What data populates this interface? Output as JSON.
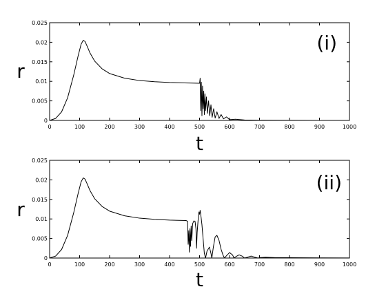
{
  "chart_data": [
    {
      "type": "line",
      "panel_label": "(i)",
      "xlabel": "t",
      "ylabel": "r",
      "xlim": [
        0,
        1000
      ],
      "ylim": [
        0,
        0.025
      ],
      "x_ticks": [
        "0",
        "100",
        "200",
        "300",
        "400",
        "500",
        "600",
        "700",
        "800",
        "900",
        "1000"
      ],
      "y_ticks": [
        "0",
        "0.005",
        "0.01",
        "0.015",
        "0.02",
        "0.025"
      ],
      "grid": false,
      "series": [
        {
          "color": "#000000",
          "points": [
            [
              0,
              0
            ],
            [
              20,
              0.0005
            ],
            [
              40,
              0.0022
            ],
            [
              60,
              0.0058
            ],
            [
              80,
              0.0115
            ],
            [
              95,
              0.0165
            ],
            [
              105,
              0.0195
            ],
            [
              112,
              0.0205
            ],
            [
              118,
              0.0202
            ],
            [
              125,
              0.019
            ],
            [
              135,
              0.0172
            ],
            [
              150,
              0.0152
            ],
            [
              175,
              0.0132
            ],
            [
              200,
              0.012
            ],
            [
              250,
              0.0108
            ],
            [
              300,
              0.0102
            ],
            [
              350,
              0.0099
            ],
            [
              400,
              0.0097
            ],
            [
              450,
              0.0096
            ],
            [
              500,
              0.0095
            ],
            [
              502,
              0.0108
            ],
            [
              504,
              0.0025
            ],
            [
              506,
              0.0098
            ],
            [
              508,
              0.0012
            ],
            [
              510,
              0.0088
            ],
            [
              512,
              0.003
            ],
            [
              514,
              0.0075
            ],
            [
              516,
              0.0015
            ],
            [
              518,
              0.0068
            ],
            [
              520,
              0.0025
            ],
            [
              523,
              0.006
            ],
            [
              526,
              0.0018
            ],
            [
              530,
              0.005
            ],
            [
              534,
              0.0012
            ],
            [
              538,
              0.004
            ],
            [
              542,
              0.0008
            ],
            [
              547,
              0.003
            ],
            [
              552,
              0.0006
            ],
            [
              558,
              0.0022
            ],
            [
              565,
              0.0005
            ],
            [
              572,
              0.0015
            ],
            [
              580,
              0.0004
            ],
            [
              590,
              0.0009
            ],
            [
              600,
              0.0002
            ],
            [
              620,
              0.0003
            ],
            [
              650,
              0.0001
            ],
            [
              700,
              5e-05
            ],
            [
              800,
              2e-05
            ],
            [
              900,
              1e-05
            ],
            [
              1000,
              0
            ]
          ]
        }
      ]
    },
    {
      "type": "line",
      "panel_label": "(ii)",
      "xlabel": "t",
      "ylabel": "r",
      "xlim": [
        0,
        1000
      ],
      "ylim": [
        0,
        0.025
      ],
      "x_ticks": [
        "0",
        "100",
        "200",
        "300",
        "400",
        "500",
        "600",
        "700",
        "800",
        "900",
        "1000"
      ],
      "y_ticks": [
        "0",
        "0.005",
        "0.01",
        "0.015",
        "0.02",
        "0.025"
      ],
      "grid": false,
      "series": [
        {
          "color": "#000000",
          "points": [
            [
              0,
              0
            ],
            [
              20,
              0.0005
            ],
            [
              40,
              0.0022
            ],
            [
              60,
              0.0058
            ],
            [
              80,
              0.0115
            ],
            [
              95,
              0.0165
            ],
            [
              105,
              0.0195
            ],
            [
              112,
              0.0205
            ],
            [
              118,
              0.0202
            ],
            [
              125,
              0.019
            ],
            [
              135,
              0.0172
            ],
            [
              150,
              0.0152
            ],
            [
              175,
              0.0132
            ],
            [
              200,
              0.012
            ],
            [
              250,
              0.0108
            ],
            [
              300,
              0.0102
            ],
            [
              350,
              0.0099
            ],
            [
              400,
              0.0097
            ],
            [
              455,
              0.0096
            ],
            [
              460,
              0.0094
            ],
            [
              462,
              0.0035
            ],
            [
              464,
              0.007
            ],
            [
              466,
              0.0015
            ],
            [
              468,
              0.0075
            ],
            [
              470,
              0.003
            ],
            [
              472,
              0.0082
            ],
            [
              474,
              0.0045
            ],
            [
              477,
              0.0088
            ],
            [
              481,
              0.0095
            ],
            [
              485,
              0.0094
            ],
            [
              488,
              0.0075
            ],
            [
              490,
              0.0025
            ],
            [
              492,
              0.0065
            ],
            [
              495,
              0.0095
            ],
            [
              498,
              0.0118
            ],
            [
              500,
              0.0112
            ],
            [
              502,
              0.0122
            ],
            [
              505,
              0.0105
            ],
            [
              508,
              0.0085
            ],
            [
              512,
              0.0048
            ],
            [
              516,
              0.0012
            ],
            [
              520,
              0.0
            ],
            [
              525,
              0.0018
            ],
            [
              533,
              0.0028
            ],
            [
              538,
              0.0012
            ],
            [
              541,
              0.0
            ],
            [
              546,
              0.0028
            ],
            [
              552,
              0.0054
            ],
            [
              558,
              0.0058
            ],
            [
              565,
              0.0045
            ],
            [
              572,
              0.0022
            ],
            [
              578,
              0.0008
            ],
            [
              583,
              0.0
            ],
            [
              590,
              0.0006
            ],
            [
              600,
              0.0014
            ],
            [
              610,
              0.0008
            ],
            [
              615,
              0.0
            ],
            [
              622,
              0.0004
            ],
            [
              632,
              0.0008
            ],
            [
              642,
              0.0005
            ],
            [
              650,
              0.0
            ],
            [
              660,
              0.0002
            ],
            [
              672,
              0.0005
            ],
            [
              684,
              0.0002
            ],
            [
              695,
              0.0
            ],
            [
              700,
              0.0001
            ],
            [
              720,
              0.0002
            ],
            [
              750,
              0.0001
            ],
            [
              800,
              8e-05
            ],
            [
              900,
              5e-05
            ],
            [
              1000,
              3e-05
            ]
          ]
        }
      ]
    }
  ]
}
